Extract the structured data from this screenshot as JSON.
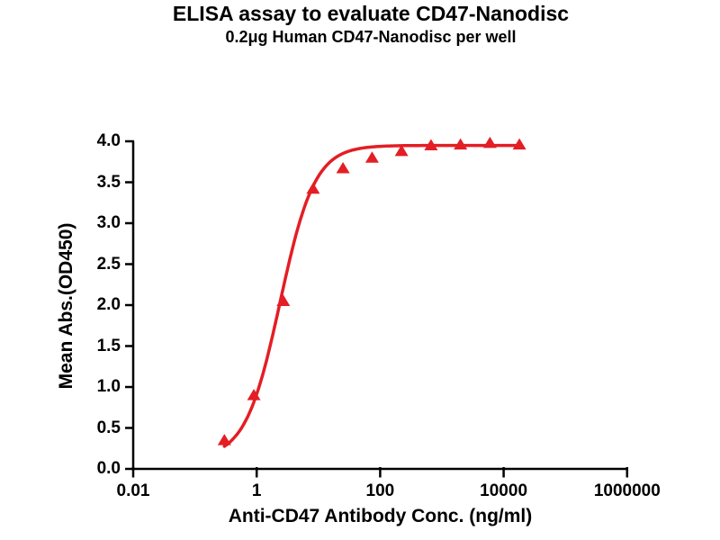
{
  "header": {
    "title": "ELISA assay to evaluate CD47-Nanodisc",
    "subtitle": "0.2μg Human CD47-Nanodisc per well"
  },
  "colors": {
    "curve": "#e31e24",
    "axis": "#000000",
    "text": "#000000",
    "background": "#ffffff"
  },
  "chart_data": {
    "type": "line",
    "title": "ELISA assay to evaluate CD47-Nanodisc",
    "subtitle": "0.2μg Human CD47-Nanodisc per well",
    "xlabel": "Anti-CD47 Antibody Conc. (ng/ml)",
    "ylabel": "Mean Abs.(OD450)",
    "x_scale": "log10",
    "xlim": [
      0.01,
      1000000
    ],
    "ylim": [
      0.0,
      4.0
    ],
    "grid": false,
    "legend": "none",
    "x_ticks": [
      0.01,
      1,
      100,
      10000,
      1000000
    ],
    "x_tick_labels": [
      "0.01",
      "1",
      "100",
      "10000",
      "1000000"
    ],
    "y_ticks": [
      0.0,
      0.5,
      1.0,
      1.5,
      2.0,
      2.5,
      3.0,
      3.5,
      4.0
    ],
    "y_tick_labels": [
      "0.0",
      "0.5",
      "1.0",
      "1.5",
      "2.0",
      "2.5",
      "3.0",
      "3.5",
      "4.0"
    ],
    "series": [
      {
        "name": "Human CD47-Nanodisc",
        "marker": "triangle-up",
        "color": "#e31e24",
        "x": [
          0.3,
          0.9,
          2.7,
          8.2,
          25,
          74,
          222,
          667,
          2000,
          6000,
          18000
        ],
        "y": [
          0.35,
          0.9,
          2.05,
          3.42,
          3.67,
          3.8,
          3.88,
          3.95,
          3.96,
          3.98,
          3.96
        ]
      }
    ],
    "fit_curve": {
      "model": "4PL",
      "bottom": 0.13,
      "top": 3.95,
      "ec50": 2.4,
      "hill": 1.55,
      "x_range": [
        0.3,
        18000
      ]
    }
  }
}
